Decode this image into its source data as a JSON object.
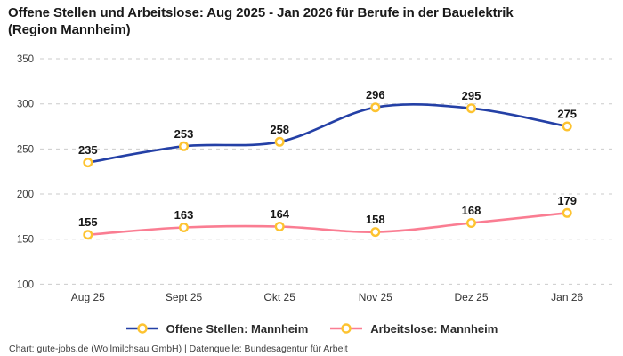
{
  "header": {
    "title": "Offene Stellen und Arbeitslose: Aug 2025 - Jan 2026 für Berufe in der Bauelektrik\n(Region Mannheim)"
  },
  "chart_data": {
    "type": "line",
    "title": "Offene Stellen und Arbeitslose: Aug 2025 - Jan 2026 für Berufe in der Bauelektrik (Region Mannheim)",
    "categories": [
      "Aug 25",
      "Sept 25",
      "Okt 25",
      "Nov 25",
      "Dez 25",
      "Jan 26"
    ],
    "series": [
      {
        "name": "Offene Stellen: Mannheim",
        "color": "#2440a6",
        "values": [
          235,
          253,
          258,
          296,
          295,
          275
        ]
      },
      {
        "name": "Arbeitslose: Mannheim",
        "color": "#fa7d92",
        "values": [
          155,
          163,
          164,
          158,
          168,
          179
        ]
      }
    ],
    "marker_color": "#fdc330",
    "marker_fill": "#ffffff",
    "value_labels": true,
    "xlabel": "",
    "ylabel": "",
    "ylim": [
      100,
      350
    ],
    "y_ticks": [
      350,
      300,
      250,
      200,
      150,
      100
    ],
    "grid": "horizontal-dashed",
    "legend_position": "bottom",
    "curve": "smooth"
  },
  "footer": {
    "credit": "Chart: gute-jobs.de (Wollmilchsau GmbH) | Datenquelle: Bundesagentur für Arbeit"
  }
}
